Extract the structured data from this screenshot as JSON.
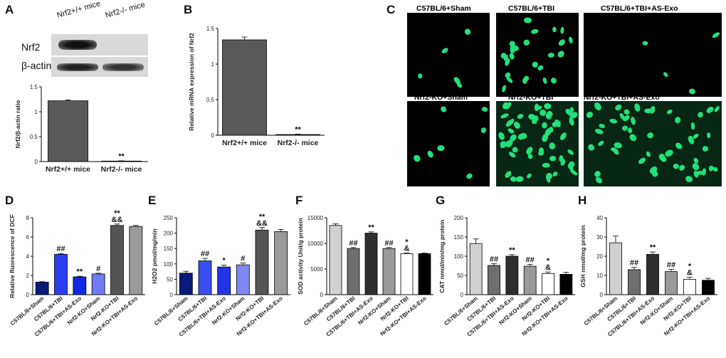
{
  "panels": [
    "A",
    "B",
    "C",
    "D",
    "E",
    "F",
    "G",
    "H"
  ],
  "blot": {
    "header_left": "Nrf2+/+ mice",
    "header_right": "Nrf2-/- mice",
    "rows": [
      "Nrf2",
      "β-actin"
    ]
  },
  "micro_titles": [
    "C57BL/6+Sham",
    "C57BL/6+TBI",
    "C57BL/6+TBI+AS-Exo",
    "Nrf2-KO+Sham",
    "Nrf2-KO+TBI",
    "Nrf2-KO+TBI+AS-Exo"
  ],
  "chart_data": [
    {
      "id": "A",
      "type": "bar",
      "categories": [
        "Nrf2+/+ mice",
        "Nrf2-/- mice"
      ],
      "values": [
        1.22,
        0.01
      ],
      "errors": [
        0.02,
        0.005
      ],
      "ylabel": "Nrf2/β-actin ratio",
      "ylim": [
        0,
        1.5
      ],
      "yticks": [
        0,
        0.5,
        1.0,
        1.5
      ],
      "colors": [
        "#5a5a5a",
        "#5a5a5a"
      ],
      "annotations": [
        "",
        "**"
      ]
    },
    {
      "id": "B",
      "type": "bar",
      "categories": [
        "Nrf2+/+ mice",
        "Nrf2-/- mice"
      ],
      "values": [
        1.34,
        0.01
      ],
      "errors": [
        0.04,
        0.005
      ],
      "ylabel": "Relative mRNA expression of Nrf2",
      "ylim": [
        0,
        1.5
      ],
      "yticks": [
        0,
        0.5,
        1.0,
        1.5
      ],
      "colors": [
        "#5a5a5a",
        "#5a5a5a"
      ],
      "annotations": [
        "",
        "**"
      ]
    },
    {
      "id": "D",
      "type": "bar",
      "categories": [
        "C57BL/6+Sham",
        "C57BL/6+TBI",
        "C57BL/6+TBI+AS-Exo",
        "Nrf2-KO+Sham",
        "Nrf2-KO+TBI",
        "Nrf2-KO+TBI+AS-Exo"
      ],
      "values": [
        1.3,
        4.2,
        1.85,
        2.15,
        7.2,
        7.1
      ],
      "errors": [
        0.05,
        0.08,
        0.06,
        0.08,
        0.15,
        0.1
      ],
      "ylabel": "Relative fluorescence of DCF",
      "ylim": [
        0,
        8
      ],
      "yticks": [
        0,
        2,
        4,
        6,
        8
      ],
      "colors": [
        "#0a1a7a",
        "#2b3ff0",
        "#1228e0",
        "#6f7cf2",
        "#555555",
        "#9a9a9a"
      ],
      "annotations": [
        "",
        "##",
        "**",
        "#",
        "**\n&&",
        ""
      ]
    },
    {
      "id": "E",
      "type": "bar",
      "categories": [
        "C57BL/6+Sham",
        "C57BL/6+TBI",
        "C57BL/6+TBI+AS-Exo",
        "Nrf2-KO+Sham",
        "Nrf2-KO+TBI",
        "Nrf2-KO+TBI+AS-Exo"
      ],
      "values": [
        70,
        110,
        90,
        97,
        210,
        205
      ],
      "errors": [
        6,
        8,
        6,
        6,
        8,
        7
      ],
      "ylabel": "H2O2 pmol/mg/min",
      "ylim": [
        0,
        250
      ],
      "yticks": [
        0,
        50,
        100,
        150,
        200,
        250
      ],
      "colors": [
        "#0a1a7a",
        "#3a4ff0",
        "#2235e6",
        "#7e8af2",
        "#555555",
        "#9a9a9a"
      ],
      "annotations": [
        "",
        "##",
        "*",
        "#",
        "**\n&&",
        ""
      ]
    },
    {
      "id": "F",
      "type": "bar",
      "categories": [
        "C57BL/6+Sham",
        "C57BL/6+TBI",
        "C57BL/6+TBI+AS-Exo",
        "Nrf2-KO+Sham",
        "Nrf2-KO+TBI",
        "Nrf2-KO+TBI+AS-Exo"
      ],
      "values": [
        13500,
        9000,
        12000,
        9000,
        8000,
        8000
      ],
      "errors": [
        300,
        200,
        250,
        200,
        150,
        100
      ],
      "ylabel": "SOD activity Unit/g protein",
      "ylim": [
        0,
        15000
      ],
      "yticks": [
        0,
        5000,
        10000,
        15000
      ],
      "colors": [
        "#d0d0d0",
        "#6e6e6e",
        "#2e2e2e",
        "#9a9a9a",
        "#ffffff",
        "#000000"
      ],
      "annotations": [
        "",
        "##",
        "**",
        "##",
        "*\n&",
        ""
      ]
    },
    {
      "id": "G",
      "type": "bar",
      "categories": [
        "C57BL/6+Sham",
        "C57BL/6+TBI",
        "C57BL/6+TBI+AS-Exo",
        "Nrf2-KO+Sham",
        "Nrf2-KO+TBI",
        "Nrf2-KO+TBI+AS-Exo"
      ],
      "values": [
        133,
        76,
        100,
        74,
        55,
        53
      ],
      "errors": [
        12,
        5,
        4,
        5,
        4,
        5
      ],
      "ylabel": "CAT nmol/min/mg protein",
      "ylim": [
        0,
        200
      ],
      "yticks": [
        0,
        50,
        100,
        150,
        200
      ],
      "colors": [
        "#d0d0d0",
        "#6e6e6e",
        "#2e2e2e",
        "#9a9a9a",
        "#ffffff",
        "#000000"
      ],
      "annotations": [
        "",
        "##",
        "**",
        "##",
        "*\n&",
        ""
      ]
    },
    {
      "id": "H",
      "type": "bar",
      "categories": [
        "C57BL/6+Sham",
        "C57BL/6+TBI",
        "C57BL/6+TBI+AS-Exo",
        "Nrf2-KO+Sham",
        "Nrf2-KO+TBI",
        "Nrf2-KO+TBI+AS-Exo"
      ],
      "values": [
        27,
        13,
        21,
        12,
        8,
        7.5
      ],
      "errors": [
        3.5,
        1.2,
        1.2,
        1.2,
        1,
        1
      ],
      "ylabel": "GSH nmol/mg protein",
      "ylim": [
        0,
        40
      ],
      "yticks": [
        0,
        10,
        20,
        30,
        40
      ],
      "colors": [
        "#d0d0d0",
        "#6e6e6e",
        "#2e2e2e",
        "#9a9a9a",
        "#ffffff",
        "#000000"
      ],
      "annotations": [
        "",
        "##",
        "**",
        "##",
        "*\n&",
        ""
      ]
    }
  ]
}
